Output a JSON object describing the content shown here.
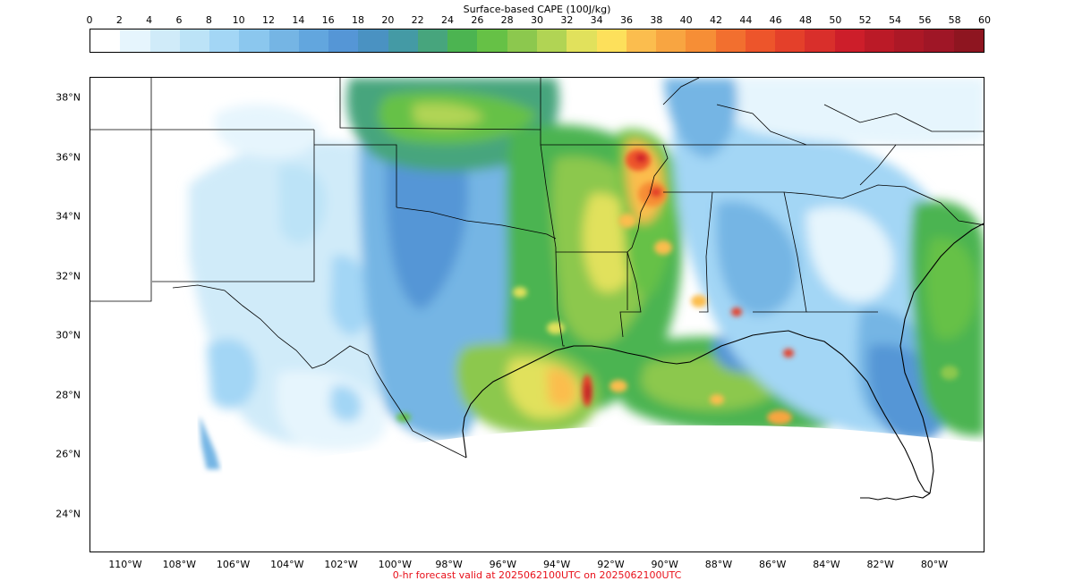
{
  "colorbar": {
    "title": "Surface-based CAPE (100J/kg)",
    "ticks": [
      "0",
      "2",
      "4",
      "6",
      "8",
      "10",
      "12",
      "14",
      "16",
      "18",
      "20",
      "22",
      "24",
      "26",
      "28",
      "30",
      "32",
      "34",
      "36",
      "38",
      "40",
      "42",
      "44",
      "46",
      "48",
      "50",
      "52",
      "54",
      "56",
      "58",
      "60"
    ],
    "colors": [
      "#ffffff",
      "#e6f5fd",
      "#d0ebf9",
      "#bce3f7",
      "#a3d6f5",
      "#8bc7ee",
      "#75b5e4",
      "#62a6de",
      "#5596d6",
      "#4a92c2",
      "#449aa5",
      "#47a57d",
      "#4cb451",
      "#66c146",
      "#8cc84e",
      "#b1d454",
      "#e1e15c",
      "#fde05b",
      "#fbbd4e",
      "#f8a541",
      "#f68e36",
      "#f26f2f",
      "#ed552b",
      "#e4402a",
      "#d92f2b",
      "#cd1e2a",
      "#bb1a27",
      "#ac1826",
      "#9f1626",
      "#8e1520"
    ]
  },
  "map": {
    "lat_labels": [
      {
        "text": "38°N",
        "value": 38
      },
      {
        "text": "36°N",
        "value": 36
      },
      {
        "text": "34°N",
        "value": 34
      },
      {
        "text": "32°N",
        "value": 32
      },
      {
        "text": "30°N",
        "value": 30
      },
      {
        "text": "28°N",
        "value": 28
      },
      {
        "text": "26°N",
        "value": 26
      },
      {
        "text": "24°N",
        "value": 24
      }
    ],
    "lon_labels": [
      {
        "text": "110°W",
        "value": -110
      },
      {
        "text": "108°W",
        "value": -108
      },
      {
        "text": "106°W",
        "value": -106
      },
      {
        "text": "104°W",
        "value": -104
      },
      {
        "text": "102°W",
        "value": -102
      },
      {
        "text": "100°W",
        "value": -100
      },
      {
        "text": "98°W",
        "value": -98
      },
      {
        "text": "96°W",
        "value": -96
      },
      {
        "text": "94°W",
        "value": -94
      },
      {
        "text": "92°W",
        "value": -92
      },
      {
        "text": "90°W",
        "value": -90
      },
      {
        "text": "88°W",
        "value": -88
      },
      {
        "text": "86°W",
        "value": -86
      },
      {
        "text": "84°W",
        "value": -84
      },
      {
        "text": "82°W",
        "value": -82
      },
      {
        "text": "80°W",
        "value": -80
      }
    ]
  },
  "footer": {
    "text": "0-hr forecast valid at 2025062100UTC on 2025062100UTC"
  }
}
